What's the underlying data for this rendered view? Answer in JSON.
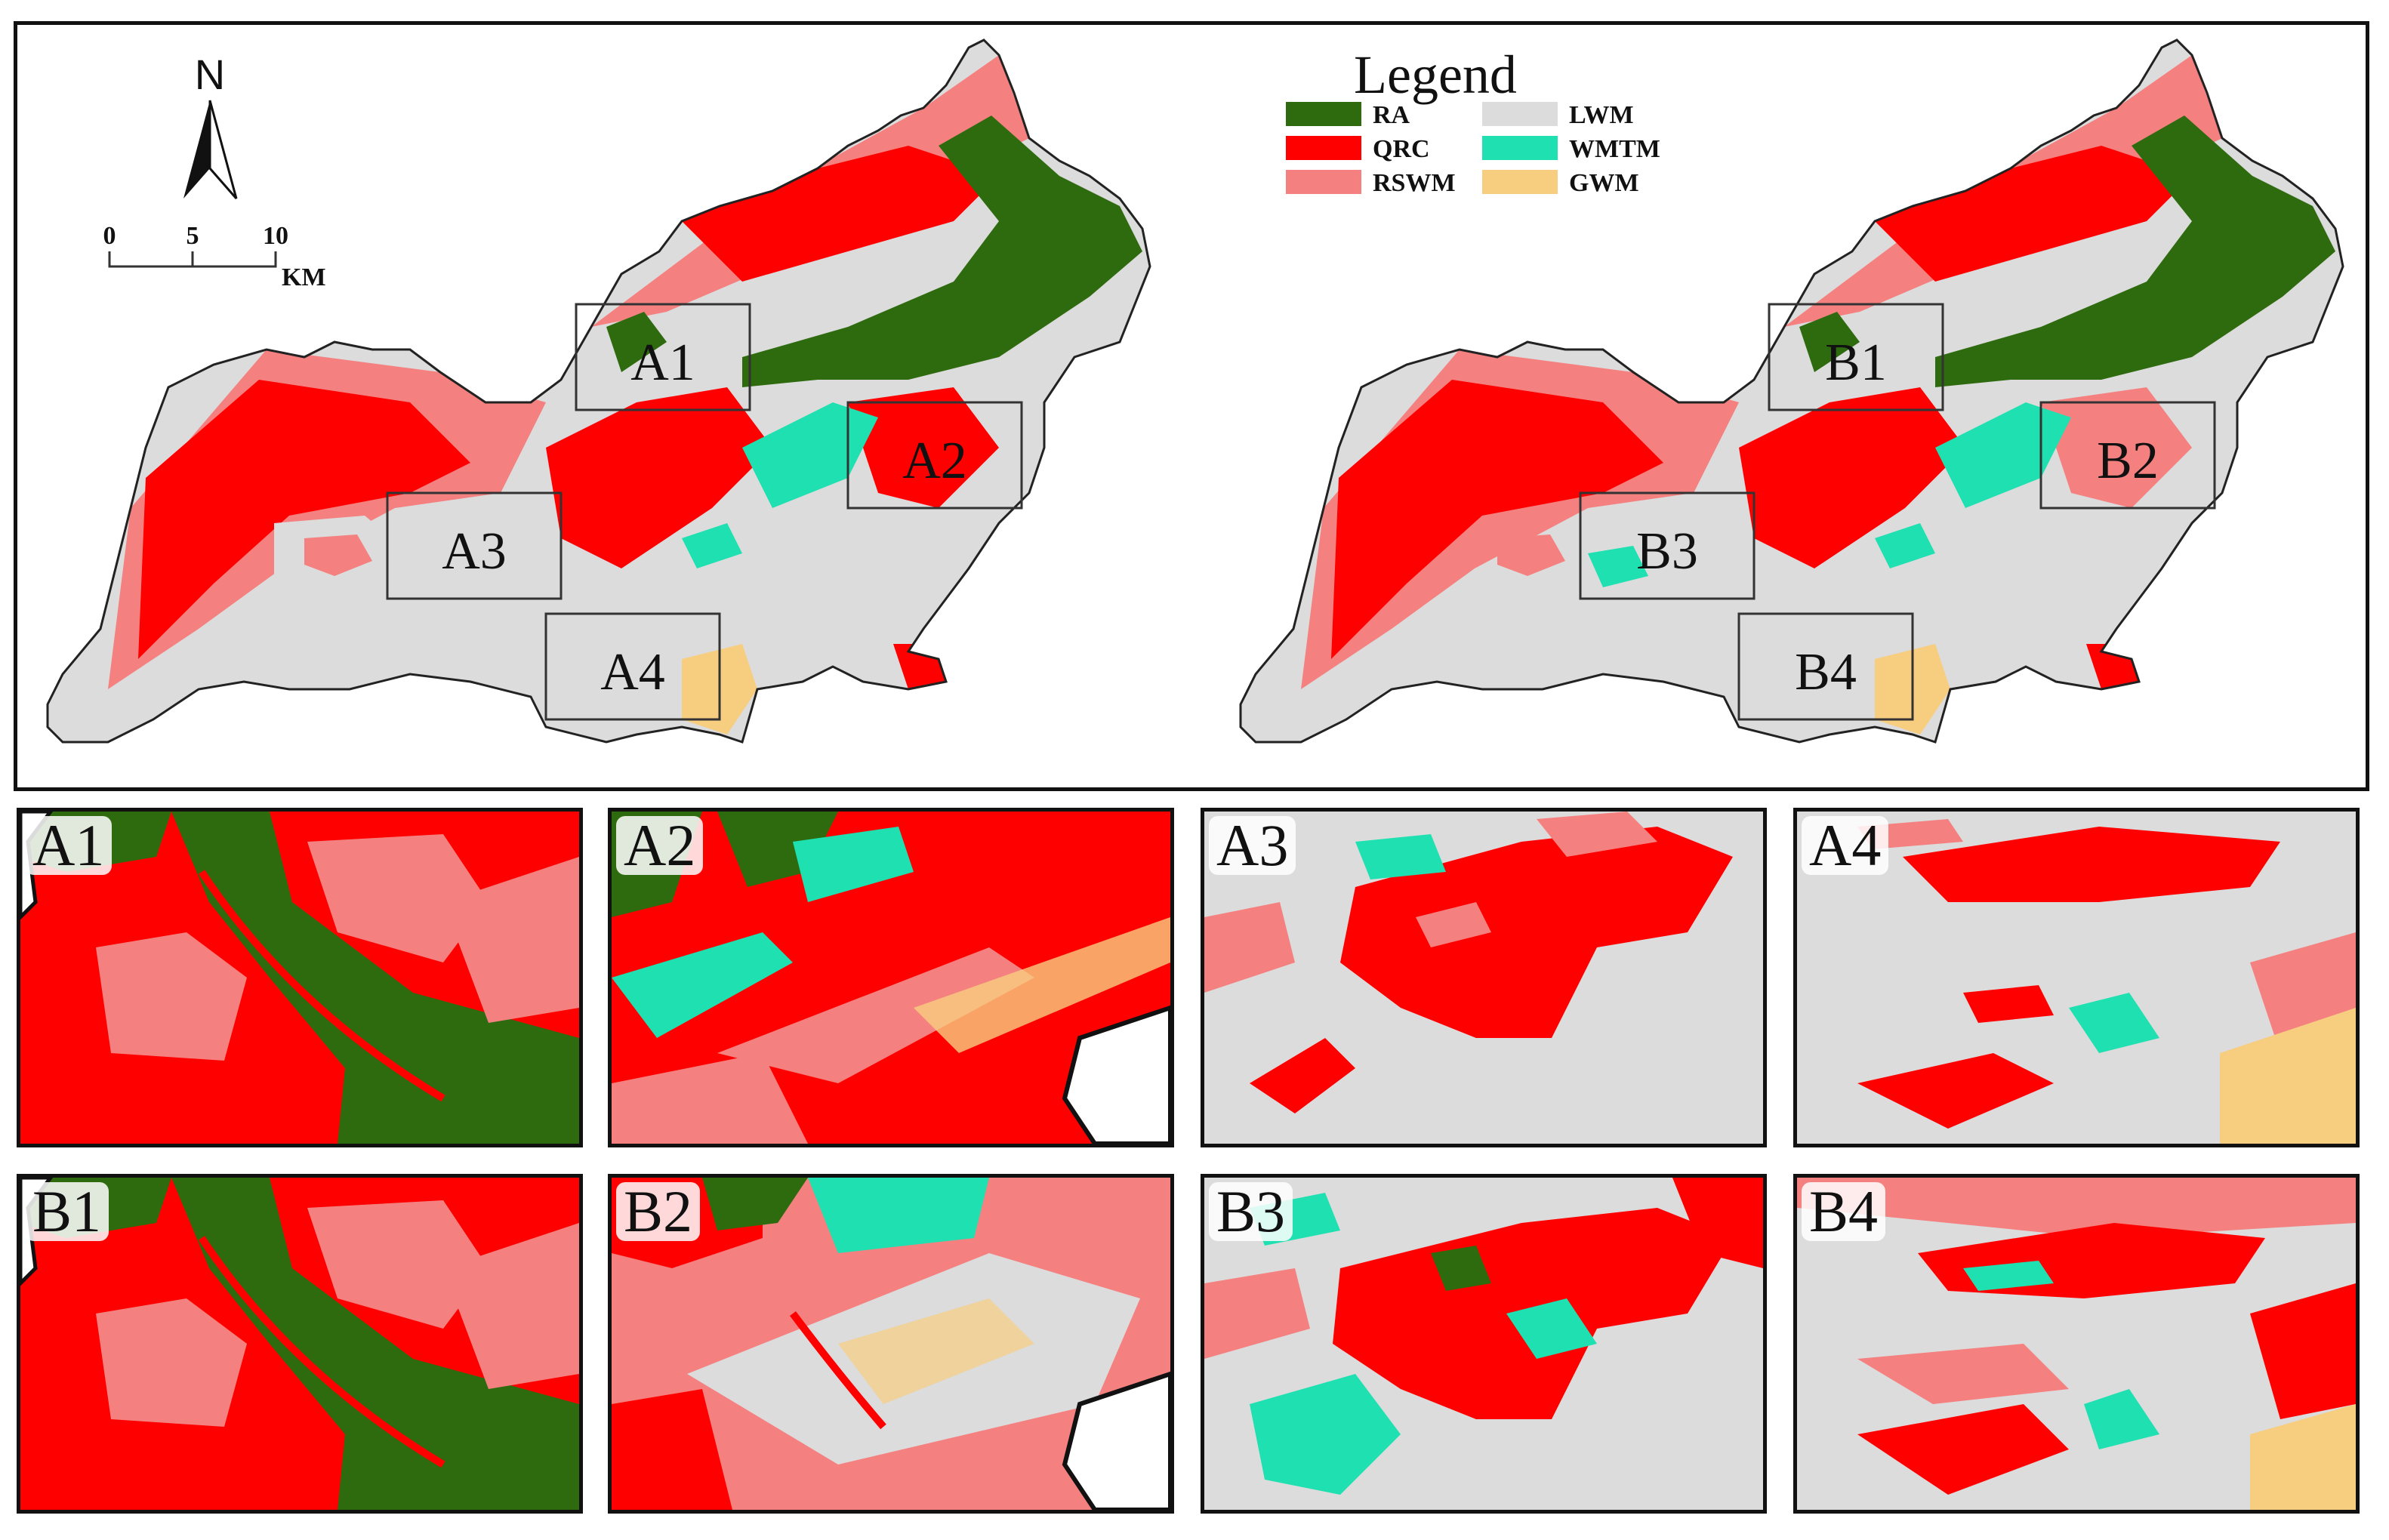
{
  "legend": {
    "title": "Legend",
    "items": [
      {
        "code": "RA",
        "color": "#2e6b0f"
      },
      {
        "code": "QRC",
        "color": "#ff0000"
      },
      {
        "code": "RSWM",
        "color": "#f58080"
      },
      {
        "code": "LWM",
        "color": "#dcdcdc"
      },
      {
        "code": "WMTM",
        "color": "#1fe0b0"
      },
      {
        "code": "GWM",
        "color": "#f7cd80"
      }
    ]
  },
  "north_arrow": {
    "label": "N"
  },
  "scale_bar": {
    "ticks": [
      "0",
      "5",
      "10"
    ],
    "unit": "KM"
  },
  "maps": {
    "left": {
      "boxes": [
        "A1",
        "A2",
        "A3",
        "A4"
      ]
    },
    "right": {
      "boxes": [
        "B1",
        "B2",
        "B3",
        "B4"
      ]
    }
  },
  "panels": {
    "top": [
      "A1",
      "A2",
      "A3",
      "A4"
    ],
    "bottom": [
      "B1",
      "B2",
      "B3",
      "B4"
    ]
  }
}
